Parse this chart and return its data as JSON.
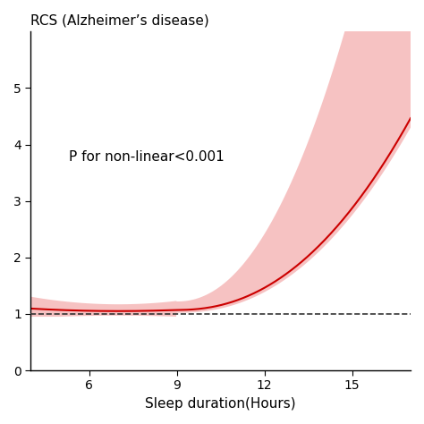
{
  "title": "RCS (Alzheimer’s disease)",
  "xlabel": "Sleep duration(Hours)",
  "ylabel": "",
  "annotation": "P for non-linear<0.001",
  "x_min": 4.0,
  "x_max": 17.0,
  "y_min": 0.0,
  "y_max": 6.0,
  "xticks": [
    6,
    9,
    12,
    15
  ],
  "yticks": [
    0,
    1,
    2,
    3,
    4,
    5
  ],
  "ytick_labels": [
    "0",
    "1",
    "2",
    "3",
    "4",
    "5"
  ],
  "ref_line_y": 1.0,
  "line_color": "#cc0000",
  "fill_color": "#f5b8b8",
  "dashed_color": "#333333",
  "background_color": "#ffffff"
}
